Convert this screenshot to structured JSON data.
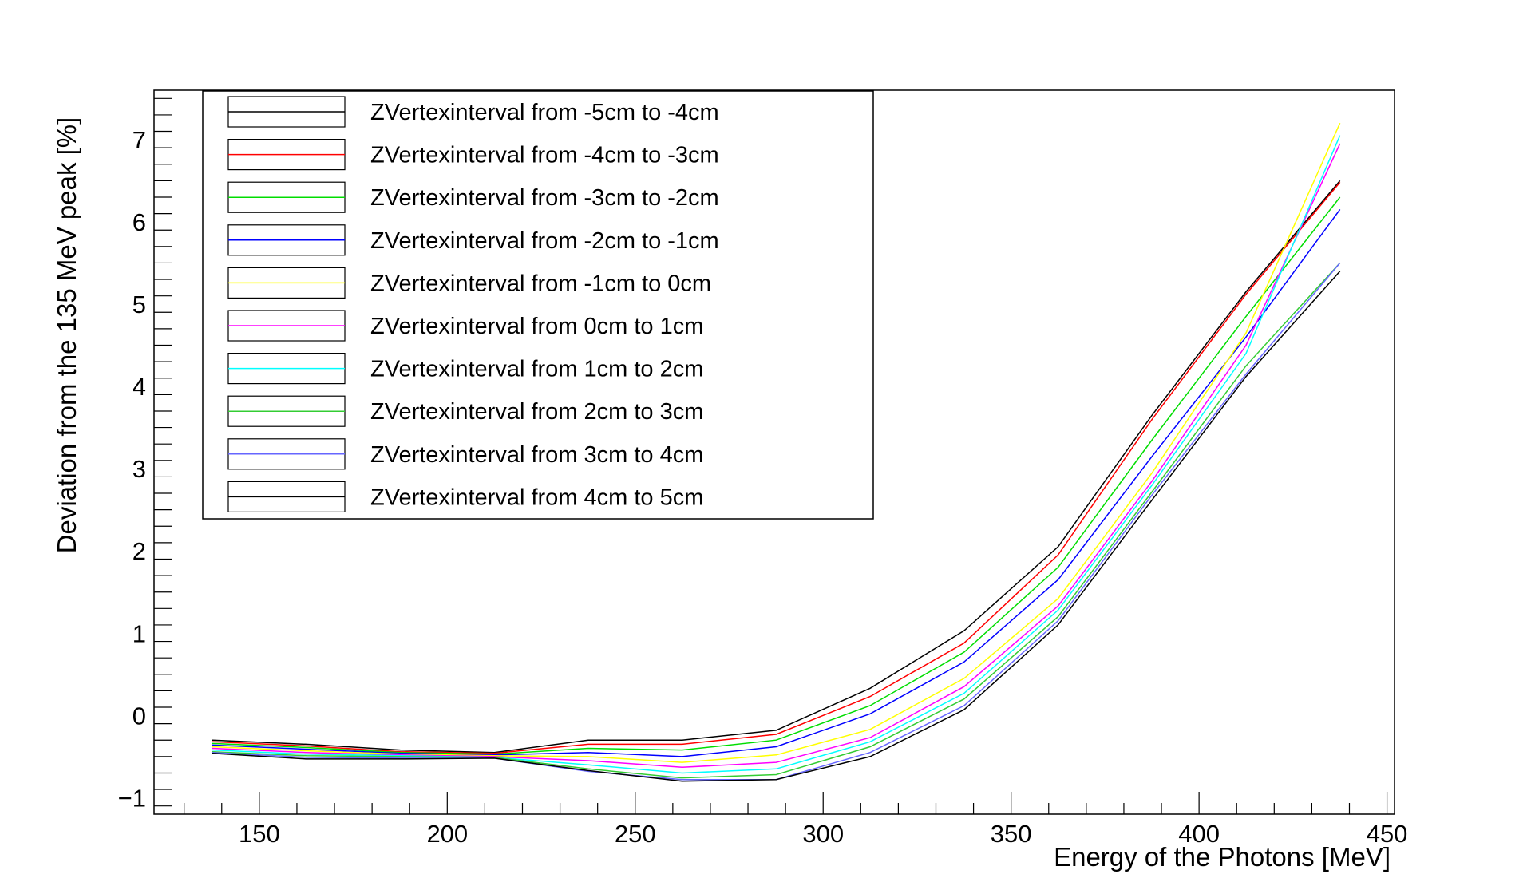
{
  "chart_data": {
    "type": "line",
    "title": "",
    "xlabel": "Energy of the Photons [MeV]",
    "ylabel": "Deviation from the 135 MeV peak [%]",
    "xlim": [
      122,
      452
    ],
    "ylim": [
      -1.2,
      7.6
    ],
    "x_ticks_major": [
      150,
      200,
      250,
      300,
      350,
      400,
      450
    ],
    "y_ticks_major": [
      -1,
      0,
      1,
      2,
      3,
      4,
      5,
      6,
      7
    ],
    "grid": false,
    "legend_position": "top-left",
    "x": [
      137.5,
      162.5,
      187.5,
      212.5,
      237.5,
      262.5,
      287.5,
      312.5,
      337.5,
      362.5,
      387.5,
      412.5,
      437.5
    ],
    "series": [
      {
        "name": "ZVertexinterval from -5cm to -4cm",
        "color": "#000000",
        "values": [
          -0.3,
          -0.35,
          -0.42,
          -0.45,
          -0.3,
          -0.3,
          -0.18,
          0.33,
          1.03,
          2.05,
          3.65,
          5.15,
          6.5
        ]
      },
      {
        "name": "ZVertexinterval from -4cm to -3cm",
        "color": "#ff0000",
        "values": [
          -0.32,
          -0.37,
          -0.44,
          -0.46,
          -0.35,
          -0.35,
          -0.23,
          0.23,
          0.88,
          1.95,
          3.6,
          5.12,
          6.48
        ]
      },
      {
        "name": "ZVertexinterval from -3cm to -2cm",
        "color": "#00dd00",
        "values": [
          -0.34,
          -0.39,
          -0.45,
          -0.47,
          -0.4,
          -0.42,
          -0.3,
          0.12,
          0.77,
          1.8,
          3.35,
          4.85,
          6.3
        ]
      },
      {
        "name": "ZVertexinterval from -2cm to -1cm",
        "color": "#0000ff",
        "values": [
          -0.36,
          -0.41,
          -0.46,
          -0.48,
          -0.45,
          -0.5,
          -0.38,
          0.02,
          0.65,
          1.65,
          3.15,
          4.6,
          6.15
        ]
      },
      {
        "name": "ZVertexinterval from -1cm to 0cm",
        "color": "#ffff00",
        "values": [
          -0.38,
          -0.43,
          -0.47,
          -0.49,
          -0.5,
          -0.57,
          -0.48,
          -0.17,
          0.45,
          1.42,
          2.95,
          4.65,
          7.2
        ]
      },
      {
        "name": "ZVertexinterval from 0cm to 1cm",
        "color": "#ff00ff",
        "values": [
          -0.4,
          -0.45,
          -0.48,
          -0.5,
          -0.55,
          -0.63,
          -0.57,
          -0.27,
          0.35,
          1.33,
          2.85,
          4.5,
          6.95
        ]
      },
      {
        "name": "ZVertexinterval from 1cm to 2cm",
        "color": "#00ffff",
        "values": [
          -0.42,
          -0.47,
          -0.49,
          -0.51,
          -0.6,
          -0.7,
          -0.65,
          -0.32,
          0.27,
          1.28,
          2.8,
          4.4,
          7.05
        ]
      },
      {
        "name": "ZVertexinterval from 2cm to 3cm",
        "color": "#33cc33",
        "values": [
          -0.44,
          -0.49,
          -0.5,
          -0.51,
          -0.65,
          -0.76,
          -0.72,
          -0.38,
          0.2,
          1.2,
          2.72,
          4.25,
          5.5
        ]
      },
      {
        "name": "ZVertexinterval from 3cm to 4cm",
        "color": "#6666ff",
        "values": [
          -0.45,
          -0.51,
          -0.52,
          -0.52,
          -0.68,
          -0.78,
          -0.78,
          -0.45,
          0.12,
          1.15,
          2.68,
          4.15,
          5.5
        ]
      },
      {
        "name": "ZVertexinterval from 4cm to 5cm",
        "color": "#000000",
        "values": [
          -0.46,
          -0.53,
          -0.53,
          -0.52,
          -0.67,
          -0.8,
          -0.78,
          -0.5,
          0.07,
          1.1,
          2.62,
          4.12,
          5.4
        ]
      }
    ]
  }
}
